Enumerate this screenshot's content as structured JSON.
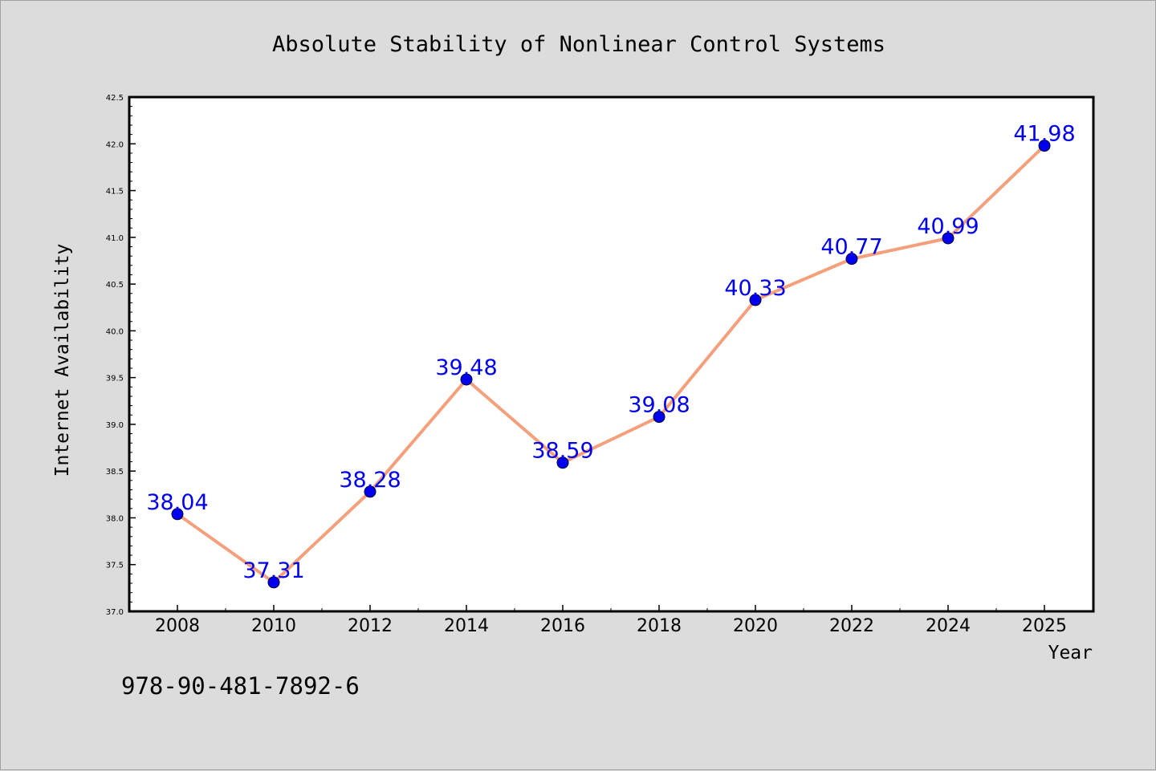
{
  "footer_code": "978-90-481-7892-6",
  "colors": {
    "background": "#dcdcdc",
    "plot_background": "#ffffff",
    "line": "#f4a07c",
    "marker": "#0000ee",
    "data_label": "#0000ee",
    "axis": "#000000"
  },
  "chart_data": {
    "type": "line",
    "title": "Absolute Stability of Nonlinear Control Systems",
    "xlabel": "Year",
    "ylabel": "Internet Availability",
    "categories": [
      "2008",
      "2010",
      "2012",
      "2014",
      "2016",
      "2018",
      "2020",
      "2022",
      "2024",
      "2025"
    ],
    "series": [
      {
        "values": [
          38.04,
          37.31,
          38.28,
          39.48,
          38.59,
          39.08,
          40.33,
          40.77,
          40.99,
          41.98
        ],
        "data_labels": [
          "38.04",
          "37.31",
          "38.28",
          "39.48",
          "38.59",
          "39.08",
          "40.33",
          "40.77",
          "40.99",
          "41.98"
        ]
      }
    ],
    "ylim": [
      37.0,
      42.5
    ],
    "yticks": [
      "37.0",
      "37.5",
      "38.0",
      "38.5",
      "39.0",
      "39.5",
      "40.0",
      "40.5",
      "41.0",
      "41.5",
      "42.0",
      "42.5"
    ],
    "grid": false,
    "legend": "none"
  }
}
